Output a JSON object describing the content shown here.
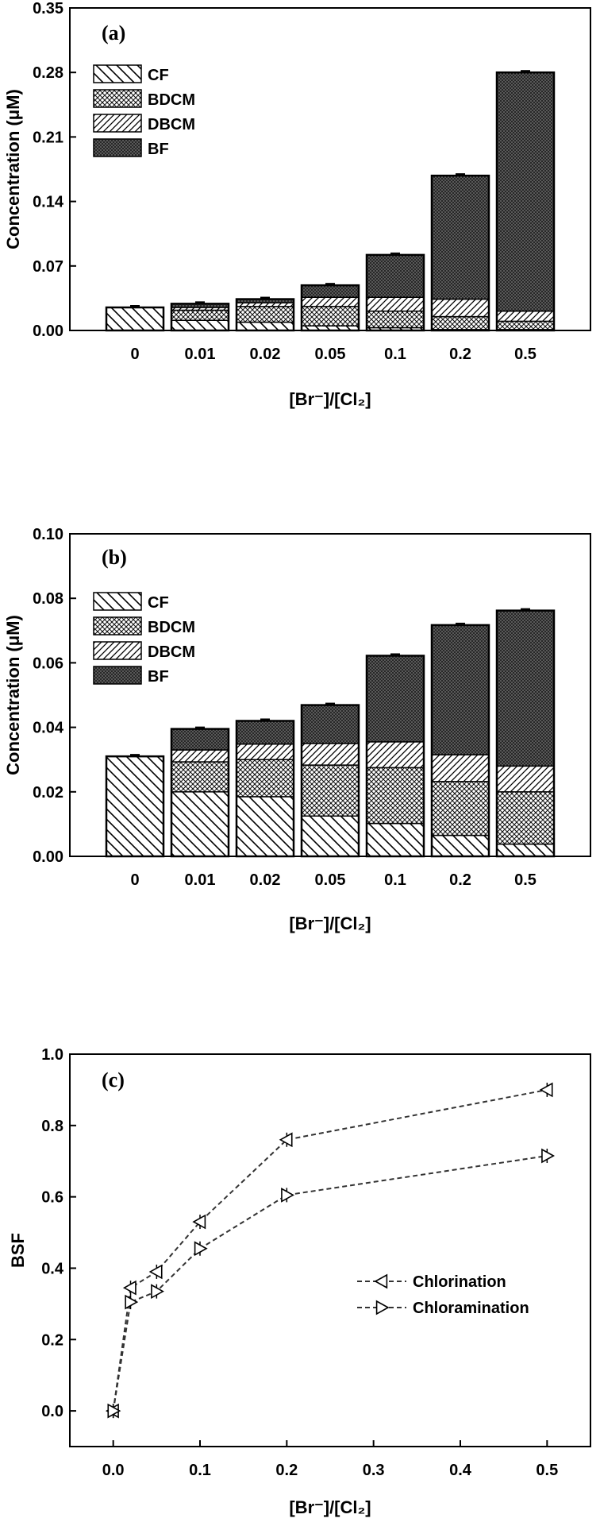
{
  "chart_data": [
    {
      "type": "bar",
      "stacked": true,
      "panel_label": "(a)",
      "categories": [
        "0",
        "0.01",
        "0.02",
        "0.05",
        "0.1",
        "0.2",
        "0.5"
      ],
      "series": [
        {
          "name": "CF",
          "pattern": "diagonal-hatch-wide",
          "values": [
            0.025,
            0.011,
            0.009,
            0.005,
            0.003,
            0.001,
            0.001
          ]
        },
        {
          "name": "BDCM",
          "pattern": "crosshatch-dots",
          "values": [
            0.0,
            0.011,
            0.017,
            0.021,
            0.018,
            0.014,
            0.009
          ]
        },
        {
          "name": "DBCM",
          "pattern": "diagonal-hatch-fine",
          "values": [
            0.0,
            0.003,
            0.004,
            0.01,
            0.015,
            0.019,
            0.011
          ]
        },
        {
          "name": "BF",
          "pattern": "dense-dots",
          "values": [
            0.0,
            0.004,
            0.004,
            0.013,
            0.046,
            0.134,
            0.259
          ]
        }
      ],
      "ylabel": "Concentration (μM)",
      "xlabel": "[Br⁻]/[Cl₂]",
      "ylim": [
        0,
        0.35
      ],
      "yticks": [
        "0.00",
        "0.07",
        "0.14",
        "0.21",
        "0.28",
        "0.35"
      ],
      "legend_position": "top-left"
    },
    {
      "type": "bar",
      "stacked": true,
      "panel_label": "(b)",
      "categories": [
        "0",
        "0.01",
        "0.02",
        "0.05",
        "0.1",
        "0.2",
        "0.5"
      ],
      "series": [
        {
          "name": "CF",
          "pattern": "diagonal-hatch-wide",
          "values": [
            0.031,
            0.02,
            0.0185,
            0.0125,
            0.0102,
            0.0065,
            0.0038
          ]
        },
        {
          "name": "BDCM",
          "pattern": "crosshatch-dots",
          "values": [
            0.0,
            0.0093,
            0.0115,
            0.0158,
            0.0173,
            0.0167,
            0.0162
          ]
        },
        {
          "name": "DBCM",
          "pattern": "diagonal-hatch-fine",
          "values": [
            0.0,
            0.0037,
            0.0048,
            0.0067,
            0.008,
            0.0083,
            0.008
          ]
        },
        {
          "name": "BF",
          "pattern": "dense-dots",
          "values": [
            0.0,
            0.0065,
            0.0072,
            0.0119,
            0.0267,
            0.0402,
            0.0482
          ]
        }
      ],
      "ylabel": "Concentration (μM)",
      "xlabel": "[Br⁻]/[Cl₂]",
      "ylim": [
        0,
        0.1
      ],
      "yticks": [
        "0.00",
        "0.02",
        "0.04",
        "0.06",
        "0.08",
        "0.10"
      ],
      "legend_position": "top-left"
    },
    {
      "type": "line",
      "panel_label": "(c)",
      "x": [
        0,
        0.02,
        0.05,
        0.1,
        0.2,
        0.5
      ],
      "series": [
        {
          "name": "Chlorination",
          "marker": "triangle-left",
          "line": "dashed",
          "values": [
            0.0,
            0.345,
            0.39,
            0.53,
            0.76,
            0.9
          ]
        },
        {
          "name": "Chloramination",
          "marker": "triangle-right",
          "line": "dashed",
          "values": [
            0.0,
            0.305,
            0.335,
            0.455,
            0.605,
            0.715
          ]
        }
      ],
      "ylabel": "BSF",
      "xlabel": "[Br⁻]/[Cl₂]",
      "xlim": [
        -0.05,
        0.55
      ],
      "ylim": [
        -0.1,
        1.0
      ],
      "xticks": [
        "0.0",
        "0.1",
        "0.2",
        "0.3",
        "0.4",
        "0.5"
      ],
      "yticks": [
        "0.0",
        "0.2",
        "0.4",
        "0.6",
        "0.8",
        "1.0"
      ],
      "legend_position": "center-right"
    }
  ]
}
